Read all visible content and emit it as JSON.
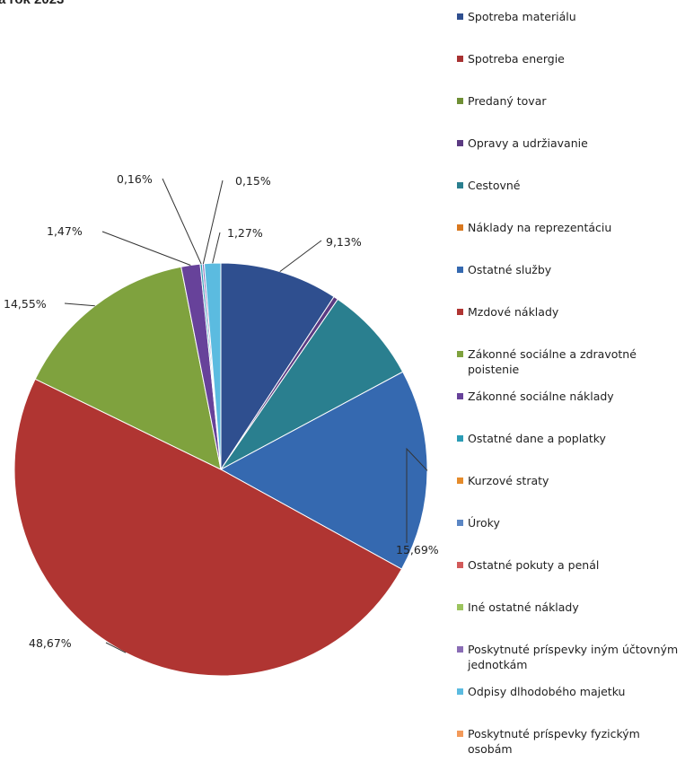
{
  "chart_data": {
    "type": "pie",
    "title": "a rok 2023",
    "legend_position": "right",
    "series": [
      {
        "name": "Spotreba materiálu",
        "value": 9.13,
        "color": "#2f4f8f",
        "label": "9,13%"
      },
      {
        "name": "Spotreba energie",
        "value": 0.0,
        "color": "#a83232",
        "label": ""
      },
      {
        "name": "Predaný tovar",
        "value": 0.0,
        "color": "#6f8f35",
        "label": ""
      },
      {
        "name": "Opravy a udržiavanie",
        "value": 0.35,
        "color": "#5b3a82",
        "label": ""
      },
      {
        "name": "Cestovné",
        "value": 7.5,
        "color": "#2a7f8f",
        "label": ""
      },
      {
        "name": "Náklady na reprezentáciu",
        "value": 0.0,
        "color": "#d9781f",
        "label": ""
      },
      {
        "name": "Ostatné služby",
        "value": 15.69,
        "color": "#3569b0",
        "label": "15,69%"
      },
      {
        "name": "Mzdové náklady",
        "value": 48.67,
        "color": "#b03532",
        "label": "48,67%"
      },
      {
        "name": "Zákonné sociálne a zdravotné poistenie",
        "value": 14.55,
        "color": "#7fa23e",
        "label": "14,55%"
      },
      {
        "name": "Zákonné sociálne náklady",
        "value": 1.47,
        "color": "#67429a",
        "label": "1,47%"
      },
      {
        "name": "Ostatné dane a poplatky",
        "value": 0.16,
        "color": "#2b9cb5",
        "label": "0,16%"
      },
      {
        "name": "Kurzové straty",
        "value": 0.0,
        "color": "#e58b2b",
        "label": ""
      },
      {
        "name": "Úroky",
        "value": 0.0,
        "color": "#5b86c4",
        "label": ""
      },
      {
        "name": "Ostatné pokuty a penál",
        "value": 0.0,
        "color": "#d25a5a",
        "label": ""
      },
      {
        "name": "Iné ostatné náklady",
        "value": 0.0,
        "color": "#9cc45e",
        "label": ""
      },
      {
        "name": "Poskytnuté príspevky iným účtovným jednotkám",
        "value": 0.15,
        "color": "#8a6db5",
        "label": "0,15%"
      },
      {
        "name": "Odpisy dlhodobého majetku",
        "value": 1.27,
        "color": "#5bbbe0",
        "label": "1,27%"
      },
      {
        "name": "Poskytnuté príspevky fyzickým osobám",
        "value": 0.0,
        "color": "#f39a5a",
        "label": ""
      }
    ]
  }
}
